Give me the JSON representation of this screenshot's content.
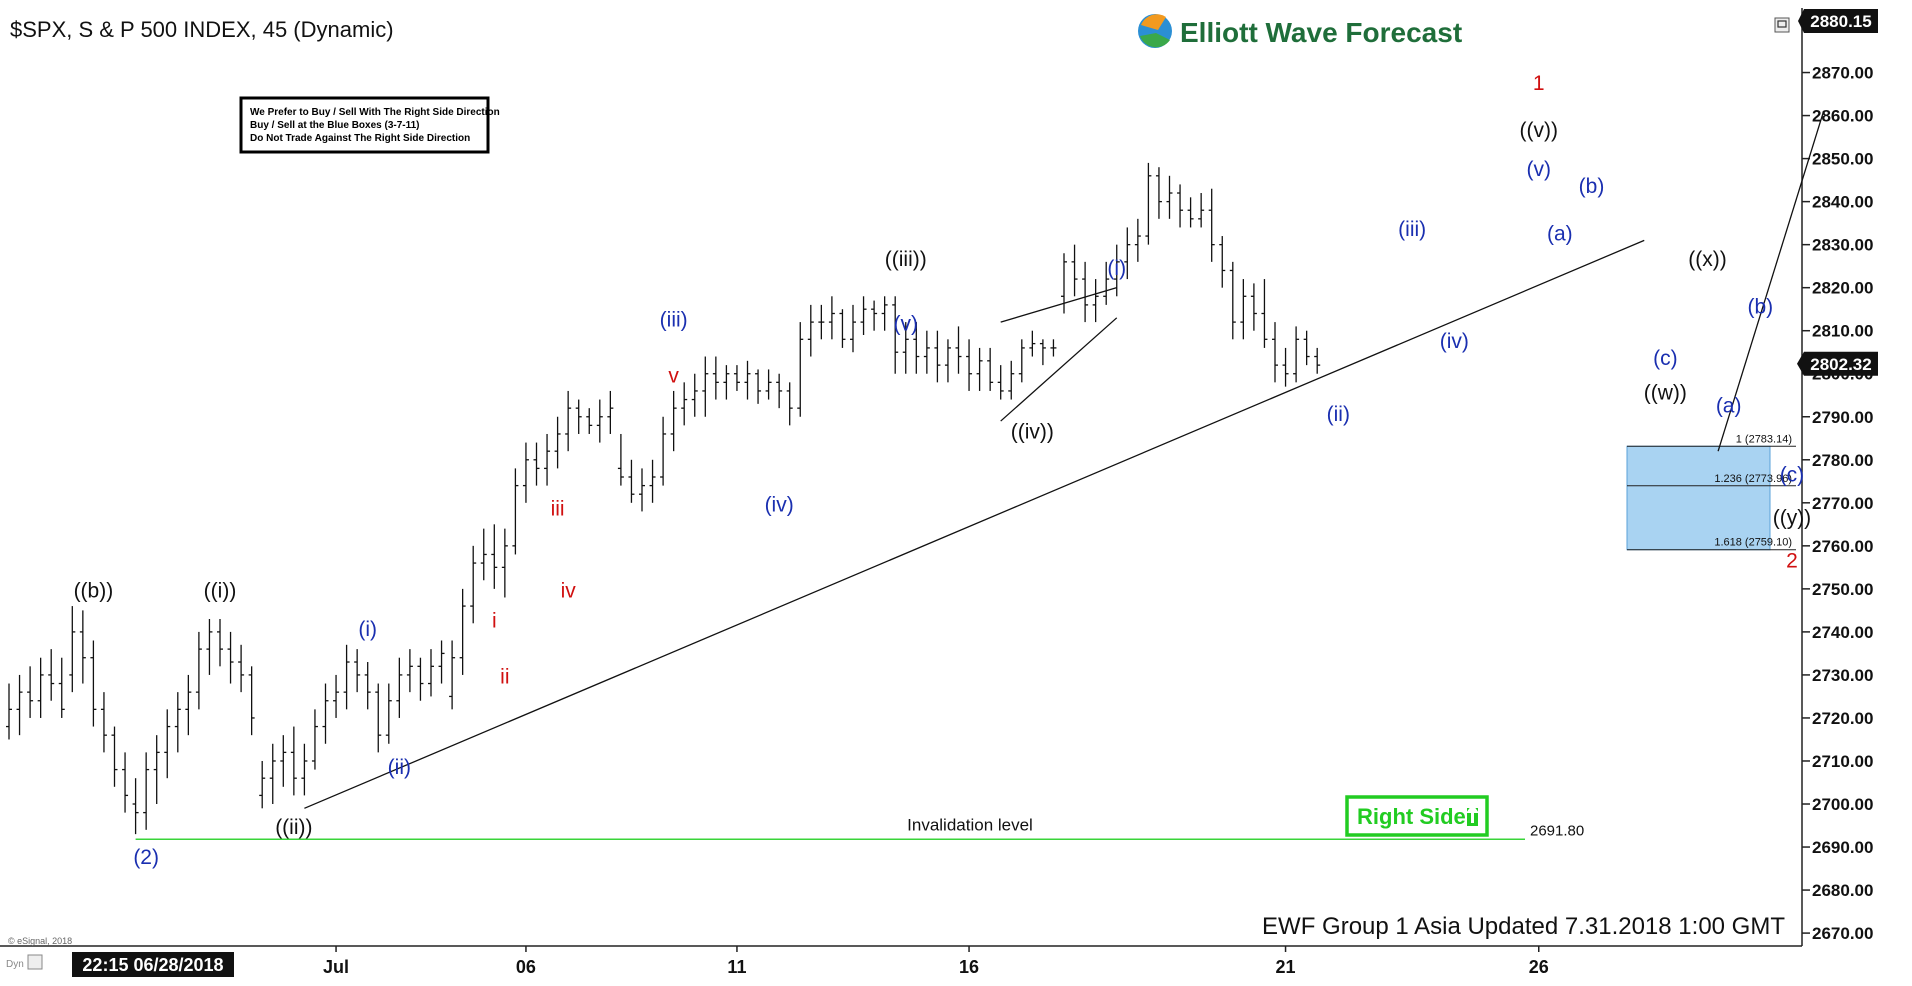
{
  "header": {
    "symbol_line": "$SPX, S & P 500 INDEX, 45 (Dynamic)",
    "brand": "Elliott Wave Forecast"
  },
  "notice": {
    "lines": [
      "We Prefer to Buy / Sell With The Right Side Direction",
      "Buy / Sell at the Blue Boxes (3-7-11)",
      "Do Not Trade Against The Right Side Direction"
    ]
  },
  "badges": {
    "right_side": "Right Side",
    "footer_update": "EWF Group 1 Asia Updated 7.31.2018 1:00 GMT",
    "esignal": "© eSignal, 2018",
    "dyn": "Dyn",
    "cursor_time": "22:15 06/28/2018"
  },
  "colors": {
    "wave_black": "#111111",
    "wave_blue": "#1a2fb0",
    "wave_red": "#d01010",
    "invalidation": "#39d439",
    "blue_box": "#a9d3f2",
    "right_side_green": "#22cc22"
  },
  "chart_data": {
    "type": "bar",
    "subtype": "ohlc",
    "title": "$SPX, S & P 500 INDEX, 45 (Dynamic)",
    "xlabel": "",
    "ylabel": "",
    "ylim": [
      2667,
      2885
    ],
    "grid": false,
    "yticks": [
      2670,
      2680,
      2690,
      2700,
      2710,
      2720,
      2730,
      2740,
      2750,
      2760,
      2770,
      2780,
      2790,
      2800,
      2810,
      2820,
      2830,
      2840,
      2850,
      2860,
      2870
    ],
    "y_tick_labels": [
      "2670.00",
      "2680.00",
      "2690.00",
      "2700.00",
      "2710.00",
      "2720.00",
      "2730.00",
      "2740.00",
      "2750.00",
      "2760.00",
      "2770.00",
      "2780.00",
      "2790.00",
      "2800.00",
      "2810.00",
      "2820.00",
      "2830.00",
      "2840.00",
      "2850.00",
      "2860.00",
      "2870.00"
    ],
    "x_tick_labels": [
      {
        "label": "Jul",
        "bar": 31
      },
      {
        "label": "06",
        "bar": 49
      },
      {
        "label": "11",
        "bar": 69
      },
      {
        "label": "16",
        "bar": 91
      },
      {
        "label": "21",
        "bar": 121
      },
      {
        "label": "26",
        "bar": 145
      }
    ],
    "current_price": {
      "value": 2802.32,
      "label": "2802.32"
    },
    "top_price": {
      "value": 2880.15,
      "label": "2880.15"
    },
    "bars": [
      [
        2718,
        2728,
        2715,
        2722
      ],
      [
        2722,
        2730,
        2716,
        2726
      ],
      [
        2726,
        2732,
        2720,
        2724
      ],
      [
        2724,
        2734,
        2720,
        2730
      ],
      [
        2730,
        2736,
        2724,
        2728
      ],
      [
        2728,
        2734,
        2720,
        2722
      ],
      [
        2730,
        2746,
        2726,
        2740
      ],
      [
        2740,
        2745,
        2728,
        2734
      ],
      [
        2734,
        2738,
        2718,
        2722
      ],
      [
        2722,
        2726,
        2712,
        2716
      ],
      [
        2716,
        2718,
        2704,
        2708
      ],
      [
        2708,
        2712,
        2698,
        2702
      ],
      [
        2700,
        2706,
        2693,
        2698
      ],
      [
        2698,
        2712,
        2694,
        2708
      ],
      [
        2708,
        2716,
        2700,
        2712
      ],
      [
        2712,
        2722,
        2706,
        2718
      ],
      [
        2718,
        2726,
        2712,
        2722
      ],
      [
        2722,
        2730,
        2716,
        2726
      ],
      [
        2726,
        2740,
        2722,
        2736
      ],
      [
        2736,
        2743,
        2730,
        2740
      ],
      [
        2740,
        2743,
        2732,
        2736
      ],
      [
        2736,
        2740,
        2728,
        2733
      ],
      [
        2733,
        2737,
        2726,
        2730
      ],
      [
        2730,
        2732,
        2716,
        2720
      ],
      [
        2702,
        2710,
        2699,
        2706
      ],
      [
        2706,
        2714,
        2700,
        2710
      ],
      [
        2710,
        2716,
        2704,
        2712
      ],
      [
        2712,
        2718,
        2702,
        2706
      ],
      [
        2706,
        2714,
        2702,
        2710
      ],
      [
        2710,
        2722,
        2708,
        2718
      ],
      [
        2718,
        2728,
        2714,
        2724
      ],
      [
        2724,
        2730,
        2720,
        2726
      ],
      [
        2726,
        2737,
        2722,
        2733
      ],
      [
        2733,
        2736,
        2726,
        2730
      ],
      [
        2730,
        2733,
        2722,
        2726
      ],
      [
        2726,
        2728,
        2712,
        2716
      ],
      [
        2716,
        2728,
        2714,
        2724
      ],
      [
        2724,
        2734,
        2720,
        2730
      ],
      [
        2730,
        2736,
        2726,
        2732
      ],
      [
        2732,
        2734,
        2724,
        2728
      ],
      [
        2728,
        2736,
        2725,
        2732
      ],
      [
        2732,
        2738,
        2728,
        2735
      ],
      [
        2725,
        2738,
        2722,
        2734
      ],
      [
        2734,
        2750,
        2730,
        2746
      ],
      [
        2746,
        2760,
        2742,
        2756
      ],
      [
        2756,
        2764,
        2752,
        2758
      ],
      [
        2758,
        2765,
        2750,
        2755
      ],
      [
        2755,
        2764,
        2748,
        2760
      ],
      [
        2760,
        2778,
        2758,
        2774
      ],
      [
        2774,
        2784,
        2770,
        2780
      ],
      [
        2780,
        2784,
        2774,
        2778
      ],
      [
        2778,
        2786,
        2774,
        2782
      ],
      [
        2782,
        2790,
        2778,
        2786
      ],
      [
        2786,
        2796,
        2782,
        2792
      ],
      [
        2792,
        2794,
        2786,
        2790
      ],
      [
        2790,
        2792,
        2786,
        2788
      ],
      [
        2788,
        2794,
        2784,
        2790
      ],
      [
        2790,
        2796,
        2786,
        2792
      ],
      [
        2778,
        2786,
        2774,
        2776
      ],
      [
        2776,
        2780,
        2770,
        2772
      ],
      [
        2772,
        2778,
        2768,
        2774
      ],
      [
        2774,
        2780,
        2770,
        2776
      ],
      [
        2776,
        2790,
        2774,
        2786
      ],
      [
        2786,
        2796,
        2782,
        2792
      ],
      [
        2792,
        2798,
        2788,
        2794
      ],
      [
        2794,
        2800,
        2790,
        2796
      ],
      [
        2796,
        2804,
        2790,
        2800
      ],
      [
        2800,
        2804,
        2794,
        2798
      ],
      [
        2798,
        2802,
        2794,
        2800
      ],
      [
        2800,
        2802,
        2796,
        2798
      ],
      [
        2798,
        2803,
        2794,
        2800
      ],
      [
        2800,
        2801,
        2793,
        2796
      ],
      [
        2796,
        2801,
        2794,
        2798
      ],
      [
        2798,
        2800,
        2792,
        2796
      ],
      [
        2796,
        2798,
        2788,
        2792
      ],
      [
        2792,
        2812,
        2790,
        2808
      ],
      [
        2808,
        2816,
        2804,
        2812
      ],
      [
        2812,
        2816,
        2808,
        2812
      ],
      [
        2812,
        2818,
        2808,
        2814
      ],
      [
        2814,
        2815,
        2806,
        2808
      ],
      [
        2808,
        2816,
        2805,
        2812
      ],
      [
        2812,
        2818,
        2809,
        2815
      ],
      [
        2815,
        2817,
        2810,
        2814
      ],
      [
        2814,
        2818,
        2810,
        2816
      ],
      [
        2816,
        2818,
        2800,
        2805
      ],
      [
        2805,
        2812,
        2800,
        2808
      ],
      [
        2808,
        2812,
        2800,
        2804
      ],
      [
        2804,
        2810,
        2800,
        2806
      ],
      [
        2806,
        2810,
        2798,
        2802
      ],
      [
        2802,
        2808,
        2798,
        2806
      ],
      [
        2806,
        2811,
        2800,
        2804
      ],
      [
        2804,
        2808,
        2796,
        2800
      ],
      [
        2800,
        2806,
        2796,
        2803
      ],
      [
        2803,
        2806,
        2796,
        2798
      ],
      [
        2798,
        2802,
        2794,
        2796
      ],
      [
        2796,
        2803,
        2794,
        2800
      ],
      [
        2800,
        2808,
        2798,
        2806
      ],
      [
        2806,
        2810,
        2804,
        2807
      ],
      [
        2807,
        2808,
        2802,
        2806
      ],
      [
        2806,
        2808,
        2804,
        2806
      ],
      [
        2818,
        2828,
        2814,
        2826
      ],
      [
        2826,
        2830,
        2818,
        2822
      ],
      [
        2822,
        2826,
        2812,
        2816
      ],
      [
        2816,
        2822,
        2812,
        2818
      ],
      [
        2818,
        2826,
        2816,
        2822
      ],
      [
        2822,
        2830,
        2818,
        2826
      ],
      [
        2826,
        2834,
        2822,
        2830
      ],
      [
        2830,
        2836,
        2826,
        2832
      ],
      [
        2832,
        2849,
        2830,
        2846
      ],
      [
        2846,
        2848,
        2836,
        2840
      ],
      [
        2840,
        2846,
        2836,
        2842
      ],
      [
        2842,
        2844,
        2834,
        2838
      ],
      [
        2838,
        2841,
        2834,
        2836
      ],
      [
        2836,
        2842,
        2834,
        2838
      ],
      [
        2838,
        2843,
        2826,
        2830
      ],
      [
        2830,
        2832,
        2820,
        2824
      ],
      [
        2824,
        2826,
        2808,
        2812
      ],
      [
        2812,
        2822,
        2808,
        2818
      ],
      [
        2818,
        2821,
        2810,
        2814
      ],
      [
        2814,
        2822,
        2806,
        2808
      ],
      [
        2808,
        2812,
        2798,
        2802
      ],
      [
        2802,
        2806,
        2797,
        2800
      ],
      [
        2800,
        2811,
        2798,
        2808
      ],
      [
        2808,
        2810,
        2802,
        2804
      ],
      [
        2804,
        2806,
        2800,
        2802
      ]
    ],
    "trendlines": [
      {
        "from": {
          "bar": 28,
          "price": 2699
        },
        "to": {
          "bar": 155,
          "price": 2831
        }
      },
      {
        "from": {
          "bar": 94,
          "price": 2812
        },
        "to": {
          "bar": 105,
          "price": 2820
        }
      },
      {
        "from": {
          "bar": 94,
          "price": 2789
        },
        "to": {
          "bar": 105,
          "price": 2813
        }
      },
      {
        "from": {
          "bar": 162,
          "price": 2782
        },
        "to": {
          "bar": 172,
          "price": 2861
        }
      }
    ],
    "invalidation": {
      "label": "Invalidation level",
      "value_label": "2691.80",
      "value": 2691.8,
      "from_bar": 12,
      "to_bar": 146
    },
    "blue_box": {
      "top": 2783.14,
      "bottom": 2759.1,
      "lines": [
        {
          "label": "1 (2783.14)",
          "value": 2783.14
        },
        {
          "label": "1.236 (2773.96)",
          "value": 2773.96
        },
        {
          "label": "1.618 (2759.10)",
          "value": 2759.1
        }
      ]
    },
    "annotations": [
      {
        "text": "((b))",
        "color": "black",
        "bar": 8,
        "price": 2748
      },
      {
        "text": "((i))",
        "color": "black",
        "bar": 20,
        "price": 2748
      },
      {
        "text": "(2)",
        "color": "blue",
        "bar": 13,
        "price": 2686
      },
      {
        "text": "((ii))",
        "color": "black",
        "bar": 27,
        "price": 2693
      },
      {
        "text": "(i)",
        "color": "blue",
        "bar": 34,
        "price": 2739
      },
      {
        "text": "(ii)",
        "color": "blue",
        "bar": 37,
        "price": 2707
      },
      {
        "text": "i",
        "color": "red",
        "bar": 46,
        "price": 2741
      },
      {
        "text": "ii",
        "color": "red",
        "bar": 47,
        "price": 2728
      },
      {
        "text": "iii",
        "color": "red",
        "bar": 52,
        "price": 2767
      },
      {
        "text": "iv",
        "color": "red",
        "bar": 53,
        "price": 2748
      },
      {
        "text": "(iii)",
        "color": "blue",
        "bar": 63,
        "price": 2811
      },
      {
        "text": "v",
        "color": "red",
        "bar": 63,
        "price": 2798
      },
      {
        "text": "(iv)",
        "color": "blue",
        "bar": 73,
        "price": 2768
      },
      {
        "text": "((iii))",
        "color": "black",
        "bar": 85,
        "price": 2825
      },
      {
        "text": "(v)",
        "color": "blue",
        "bar": 85,
        "price": 2810
      },
      {
        "text": "((iv))",
        "color": "black",
        "bar": 97,
        "price": 2785
      },
      {
        "text": "(i)",
        "color": "blue",
        "bar": 105,
        "price": 2823
      },
      {
        "text": "(ii)",
        "color": "blue",
        "bar": 126,
        "price": 2789
      },
      {
        "text": "(iii)",
        "color": "blue",
        "bar": 133,
        "price": 2832
      },
      {
        "text": "(iv)",
        "color": "blue",
        "bar": 137,
        "price": 2806
      },
      {
        "text": "1",
        "color": "red",
        "bar": 145,
        "price": 2866
      },
      {
        "text": "((v))",
        "color": "black",
        "bar": 145,
        "price": 2855
      },
      {
        "text": "(v)",
        "color": "blue",
        "bar": 145,
        "price": 2846
      },
      {
        "text": "(a)",
        "color": "blue",
        "bar": 147,
        "price": 2831
      },
      {
        "text": "(b)",
        "color": "blue",
        "bar": 150,
        "price": 2842
      },
      {
        "text": "((x))",
        "color": "black",
        "bar": 161,
        "price": 2825
      },
      {
        "text": "(b)",
        "color": "blue",
        "bar": 166,
        "price": 2814
      },
      {
        "text": "(c)",
        "color": "blue",
        "bar": 157,
        "price": 2802
      },
      {
        "text": "((w))",
        "color": "black",
        "bar": 157,
        "price": 2794
      },
      {
        "text": "(a)",
        "color": "blue",
        "bar": 163,
        "price": 2791
      },
      {
        "text": "(c)",
        "color": "blue",
        "bar": 169,
        "price": 2775
      },
      {
        "text": "((y))",
        "color": "black",
        "bar": 169,
        "price": 2765
      },
      {
        "text": "2",
        "color": "red",
        "bar": 169,
        "price": 2755
      }
    ]
  }
}
